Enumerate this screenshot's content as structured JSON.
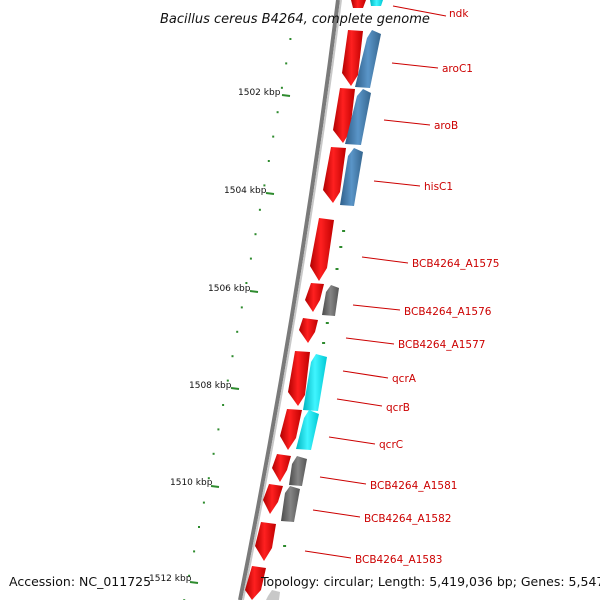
{
  "title": "Bacillus cereus B4264, complete genome",
  "accession": "Accession: NC_011725",
  "topology": "Topology: circular; Length: 5,419,036 bp; Genes: 5,547",
  "colors": {
    "forward_cds": "#ff0000",
    "reverse_blue": "#4682b4",
    "reverse_cyan": "#00e5ee",
    "reverse_gray": "#6e6e6e",
    "backbone": "#808080",
    "ticks": "#2e8b2e",
    "label": "#cc0000"
  },
  "ticks": [
    {
      "label": "1502 kbp"
    },
    {
      "label": "1504 kbp"
    },
    {
      "label": "1506 kbp"
    },
    {
      "label": "1508 kbp"
    },
    {
      "label": "1510 kbp"
    },
    {
      "label": "1512 kbp"
    }
  ],
  "genes": [
    {
      "label": "ndk"
    },
    {
      "label": "aroC1"
    },
    {
      "label": "aroB"
    },
    {
      "label": "hisC1"
    },
    {
      "label": "BCB4264_A1575"
    },
    {
      "label": "BCB4264_A1576"
    },
    {
      "label": "BCB4264_A1577"
    },
    {
      "label": "qcrA"
    },
    {
      "label": "qcrB"
    },
    {
      "label": "qcrC"
    },
    {
      "label": "BCB4264_A1581"
    },
    {
      "label": "BCB4264_A1582"
    },
    {
      "label": "BCB4264_A1583"
    }
  ]
}
